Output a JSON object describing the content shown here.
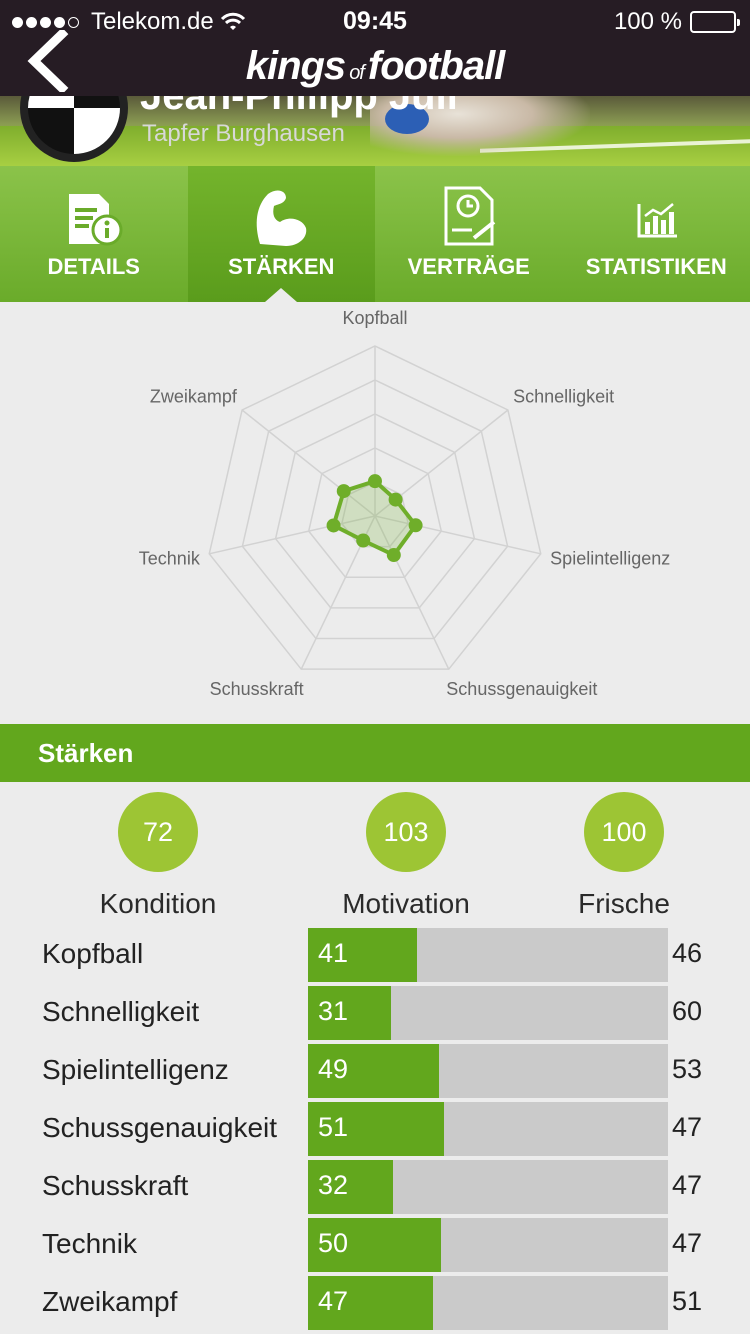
{
  "status_bar": {
    "carrier": "Telekom.de",
    "time": "09:45",
    "battery": "100 %"
  },
  "nav": {
    "logo_left": "kings",
    "logo_of": "of",
    "logo_right": "football"
  },
  "player": {
    "name": "Jean-Philipp Juli",
    "team": "Tapfer Burghausen"
  },
  "tabs": [
    {
      "label": "DETAILS",
      "icon": "document-info-icon",
      "active": false
    },
    {
      "label": "STÄRKEN",
      "icon": "biceps-icon",
      "active": true
    },
    {
      "label": "VERTRÄGE",
      "icon": "contract-icon",
      "active": false
    },
    {
      "label": "STATISTIKEN",
      "icon": "bar-chart-icon",
      "active": false
    }
  ],
  "chart_data": {
    "type": "radar",
    "axes": [
      "Kopfball",
      "Schnelligkeit",
      "Spielintelligenz",
      "Schussgenauigkeit",
      "Schusskraft",
      "Technik",
      "Zweikampf"
    ],
    "values": [
      41,
      31,
      49,
      51,
      32,
      50,
      47
    ],
    "max_values": [
      46,
      60,
      53,
      47,
      47,
      47,
      51
    ],
    "rmax": 200,
    "rings": 5,
    "grid": true,
    "colors": {
      "fill": "#6fae2a",
      "grid": "#d2d2d2"
    }
  },
  "section_title": "Stärken",
  "summary": [
    {
      "value": "72",
      "label": "Kondition"
    },
    {
      "value": "103",
      "label": "Motivation"
    },
    {
      "value": "100",
      "label": "Frische"
    }
  ],
  "bar_scale_max": 135,
  "colors": {
    "accent": "#62a71d",
    "circle": "#9dc534",
    "nav_bg": "#261c24"
  }
}
